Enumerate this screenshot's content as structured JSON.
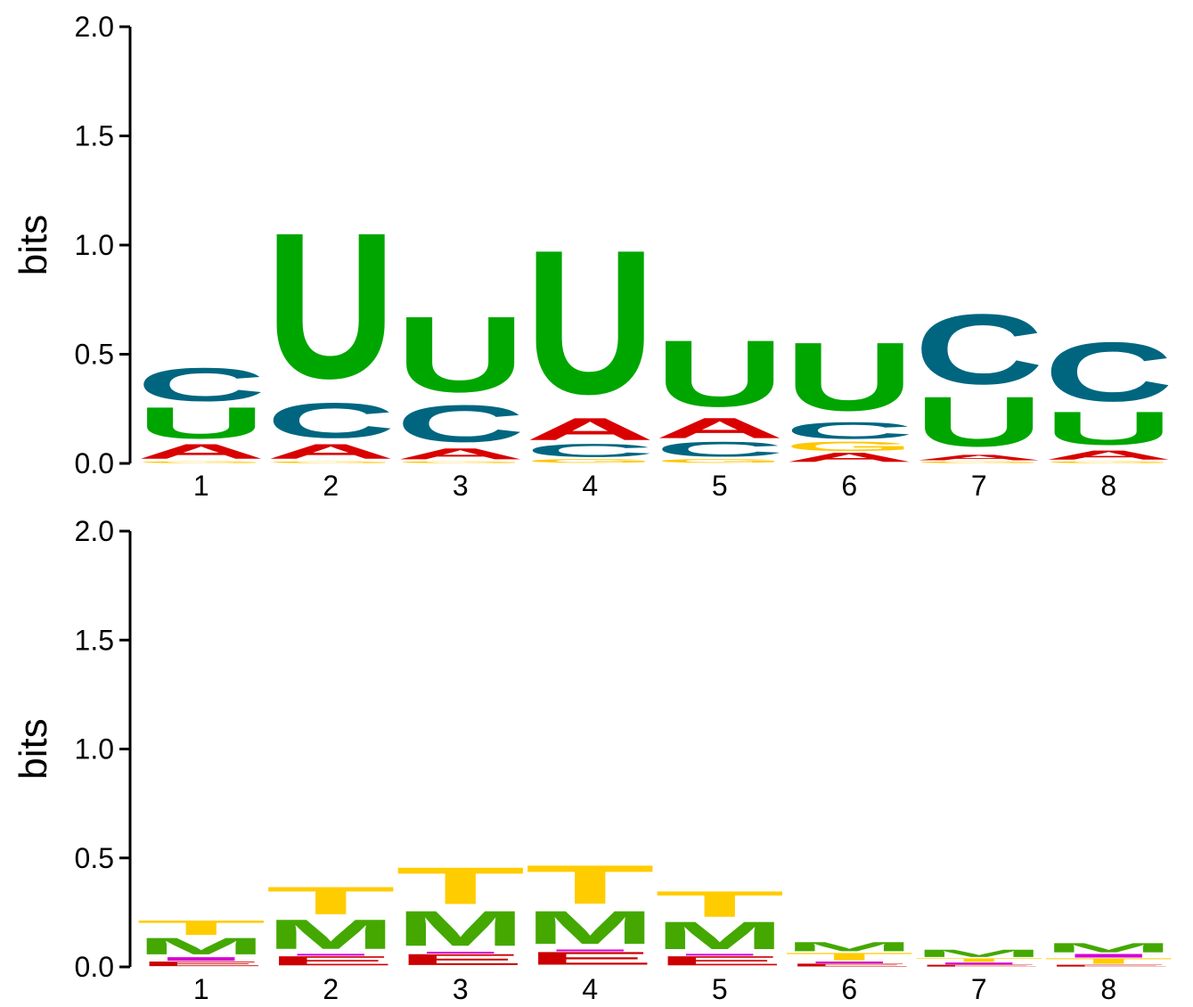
{
  "colors": {
    "A": "#d90000",
    "C": "#006680",
    "G": "#ffc600",
    "U": "#00a600",
    "T": "#ffcc00",
    "M": "#44a800",
    "E": "#cc0000",
    "I": "#d400d4"
  },
  "chart_data": [
    {
      "type": "sequence-logo",
      "alphabet": [
        "A",
        "C",
        "G",
        "U"
      ],
      "ylabel": "bits",
      "ylim": [
        0,
        2
      ],
      "yticks": [
        "0.0",
        "0.5",
        "1.0",
        "1.5",
        "2.0"
      ],
      "ytick_values": [
        0,
        0.5,
        1,
        1.5,
        2
      ],
      "positions": [
        "1",
        "2",
        "3",
        "4",
        "5",
        "6",
        "7",
        "8"
      ],
      "stacks": [
        [
          {
            "l": "G",
            "h": 0.01
          },
          {
            "l": "A",
            "h": 0.08
          },
          {
            "l": "U",
            "h": 0.17
          },
          {
            "l": "C",
            "h": 0.18
          }
        ],
        [
          {
            "l": "G",
            "h": 0.01
          },
          {
            "l": "A",
            "h": 0.08
          },
          {
            "l": "C",
            "h": 0.19
          },
          {
            "l": "U",
            "h": 0.79
          }
        ],
        [
          {
            "l": "G",
            "h": 0.01
          },
          {
            "l": "A",
            "h": 0.06
          },
          {
            "l": "C",
            "h": 0.2
          },
          {
            "l": "U",
            "h": 0.41
          }
        ],
        [
          {
            "l": "G",
            "h": 0.02
          },
          {
            "l": "C",
            "h": 0.07
          },
          {
            "l": "A",
            "h": 0.12
          },
          {
            "l": "U",
            "h": 0.78
          }
        ],
        [
          {
            "l": "G",
            "h": 0.02
          },
          {
            "l": "C",
            "h": 0.08
          },
          {
            "l": "A",
            "h": 0.11
          },
          {
            "l": "U",
            "h": 0.36
          }
        ],
        [
          {
            "l": "A",
            "h": 0.05
          },
          {
            "l": "G",
            "h": 0.05
          },
          {
            "l": "C",
            "h": 0.09
          },
          {
            "l": "U",
            "h": 0.37
          }
        ],
        [
          {
            "l": "G",
            "h": 0.01
          },
          {
            "l": "A",
            "h": 0.03
          },
          {
            "l": "U",
            "h": 0.27
          },
          {
            "l": "C",
            "h": 0.38
          }
        ],
        [
          {
            "l": "G",
            "h": 0.01
          },
          {
            "l": "A",
            "h": 0.05
          },
          {
            "l": "U",
            "h": 0.18
          },
          {
            "l": "C",
            "h": 0.32
          }
        ]
      ]
    },
    {
      "type": "sequence-logo",
      "alphabet": [
        "T",
        "M",
        "I",
        "E"
      ],
      "ylabel": "bits",
      "ylim": [
        0,
        2
      ],
      "yticks": [
        "0.0",
        "0.5",
        "1.0",
        "1.5",
        "2.0"
      ],
      "ytick_values": [
        0,
        0.5,
        1,
        1.5,
        2
      ],
      "positions": [
        "1",
        "2",
        "3",
        "4",
        "5",
        "6",
        "7",
        "8"
      ],
      "stacks": [
        [
          {
            "l": "E",
            "h": 0.025
          },
          {
            "l": "I",
            "h": 0.02
          },
          {
            "l": "M",
            "h": 0.09
          },
          {
            "l": "T",
            "h": 0.08
          }
        ],
        [
          {
            "l": "E",
            "h": 0.05
          },
          {
            "l": "I",
            "h": 0.01
          },
          {
            "l": "M",
            "h": 0.16
          },
          {
            "l": "T",
            "h": 0.15
          }
        ],
        [
          {
            "l": "E",
            "h": 0.06
          },
          {
            "l": "I",
            "h": 0.01
          },
          {
            "l": "M",
            "h": 0.19
          },
          {
            "l": "T",
            "h": 0.2
          }
        ],
        [
          {
            "l": "E",
            "h": 0.07
          },
          {
            "l": "I",
            "h": 0.01
          },
          {
            "l": "M",
            "h": 0.18
          },
          {
            "l": "T",
            "h": 0.21
          }
        ],
        [
          {
            "l": "E",
            "h": 0.05
          },
          {
            "l": "I",
            "h": 0.01
          },
          {
            "l": "M",
            "h": 0.15
          },
          {
            "l": "T",
            "h": 0.14
          }
        ],
        [
          {
            "l": "E",
            "h": 0.015
          },
          {
            "l": "I",
            "h": 0.01
          },
          {
            "l": "T",
            "h": 0.04
          },
          {
            "l": "M",
            "h": 0.05
          }
        ],
        [
          {
            "l": "E",
            "h": 0.01
          },
          {
            "l": "I",
            "h": 0.01
          },
          {
            "l": "T",
            "h": 0.02
          },
          {
            "l": "M",
            "h": 0.04
          }
        ],
        [
          {
            "l": "E",
            "h": 0.01
          },
          {
            "l": "T",
            "h": 0.03
          },
          {
            "l": "I",
            "h": 0.02
          },
          {
            "l": "M",
            "h": 0.05
          }
        ]
      ]
    }
  ]
}
